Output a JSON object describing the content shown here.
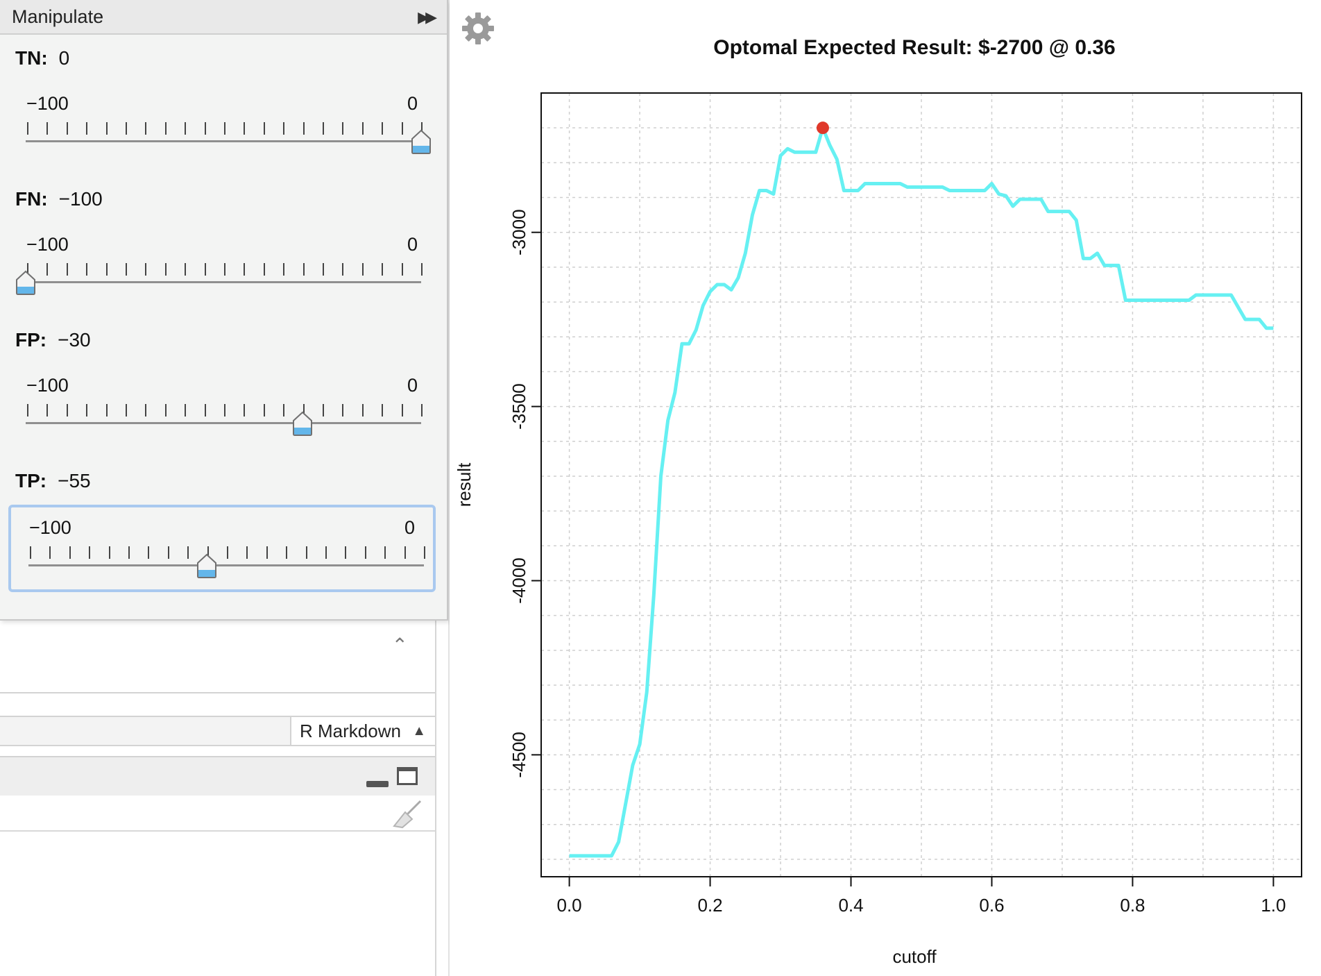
{
  "manipulate": {
    "title": "Manipulate",
    "controls": [
      {
        "name": "TN",
        "label": "TN:",
        "value": 0,
        "value_text": "0",
        "min": -100,
        "max": 0,
        "min_label": "−100",
        "max_label": "0",
        "focused": false
      },
      {
        "name": "FN",
        "label": "FN:",
        "value": -100,
        "value_text": "−100",
        "min": -100,
        "max": 0,
        "min_label": "−100",
        "max_label": "0",
        "focused": false
      },
      {
        "name": "FP",
        "label": "FP:",
        "value": -30,
        "value_text": "−30",
        "min": -100,
        "max": 0,
        "min_label": "−100",
        "max_label": "0",
        "focused": false
      },
      {
        "name": "TP",
        "label": "TP:",
        "value": -55,
        "value_text": "−55",
        "min": -100,
        "max": 0,
        "min_label": "−100",
        "max_label": "0",
        "focused": true
      }
    ]
  },
  "editor": {
    "document_type": "R Markdown"
  },
  "icons": {
    "expand": "double-chevron-right-icon",
    "collapse": "double-chevron-up-icon",
    "settings": "gear-icon",
    "minimize": "minimize-icon",
    "maximize": "maximize-icon",
    "clear": "broom-icon"
  },
  "colors": {
    "line": "#66f0f2",
    "optimum_point": "#e0382a",
    "focus_border": "#a9c9ef"
  },
  "chart_data": {
    "type": "line",
    "title": "Optomal Expected Result: $-2700 @ 0.36",
    "xlabel": "cutoff",
    "ylabel": "result",
    "xlim": [
      -0.04,
      1.04
    ],
    "ylim": [
      -4850,
      -2600
    ],
    "xticks": [
      0.0,
      0.2,
      0.4,
      0.6,
      0.8,
      1.0
    ],
    "xtick_labels": [
      "0.0",
      "0.2",
      "0.4",
      "0.6",
      "0.8",
      "1.0"
    ],
    "yticks": [
      -4500,
      -4000,
      -3500,
      -3000
    ],
    "ytick_labels": [
      "-4500",
      "-4000",
      "-3500",
      "-3000"
    ],
    "grid": true,
    "optimum": {
      "x": 0.36,
      "y": -2700
    },
    "series": [
      {
        "x": [
          0.0,
          0.06,
          0.07,
          0.08,
          0.09,
          0.1,
          0.11,
          0.12,
          0.13,
          0.14,
          0.15,
          0.16,
          0.17,
          0.18,
          0.19,
          0.2,
          0.21,
          0.22,
          0.23,
          0.24,
          0.25,
          0.26,
          0.27,
          0.28,
          0.29,
          0.3,
          0.31,
          0.32,
          0.35,
          0.36,
          0.37,
          0.38,
          0.39,
          0.41,
          0.42,
          0.43,
          0.47,
          0.48,
          0.5,
          0.53,
          0.54,
          0.59,
          0.6,
          0.61,
          0.62,
          0.63,
          0.64,
          0.67,
          0.68,
          0.71,
          0.72,
          0.73,
          0.74,
          0.75,
          0.76,
          0.78,
          0.79,
          0.88,
          0.89,
          0.94,
          0.95,
          0.96,
          0.98,
          0.99,
          1.0
        ],
        "y": [
          -4790,
          -4790,
          -4750,
          -4640,
          -4530,
          -4470,
          -4320,
          -4040,
          -3700,
          -3540,
          -3460,
          -3320,
          -3320,
          -3280,
          -3210,
          -3170,
          -3150,
          -3150,
          -3165,
          -3130,
          -3060,
          -2950,
          -2880,
          -2880,
          -2890,
          -2780,
          -2760,
          -2770,
          -2770,
          -2700,
          -2750,
          -2790,
          -2880,
          -2880,
          -2860,
          -2860,
          -2860,
          -2870,
          -2870,
          -2870,
          -2880,
          -2880,
          -2860,
          -2890,
          -2895,
          -2925,
          -2905,
          -2905,
          -2940,
          -2940,
          -2965,
          -3075,
          -3075,
          -3060,
          -3095,
          -3095,
          -3195,
          -3195,
          -3180,
          -3180,
          -3215,
          -3250,
          -3250,
          -3275,
          -3275
        ]
      }
    ]
  }
}
